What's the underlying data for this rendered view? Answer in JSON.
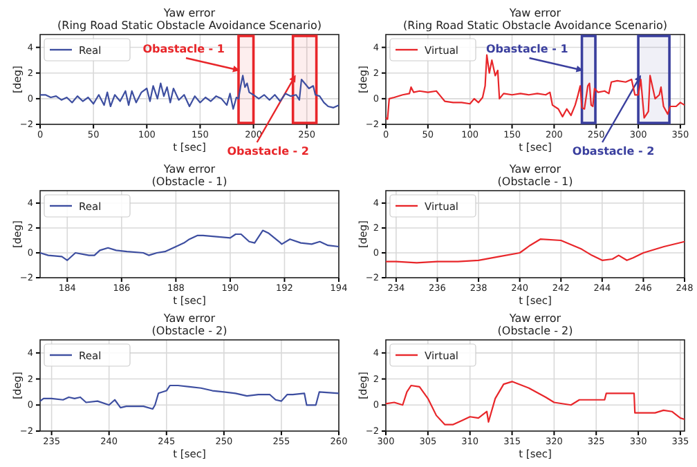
{
  "chart_data": [
    {
      "type": "line",
      "title": "Yaw error",
      "subtitle": "(Ring Road Static Obstacle Avoidance Scenario)",
      "xlabel": "t [sec]",
      "ylabel": "[deg]",
      "xlim": [
        0,
        280
      ],
      "xticks": [
        0,
        50,
        100,
        150,
        200,
        250
      ],
      "ylim": [
        -2,
        5
      ],
      "yticks": [
        -2,
        0,
        2,
        4
      ],
      "grid": true,
      "legend": "top left",
      "line_style": "solid",
      "bands": [
        {
          "axis": "x",
          "from": 186,
          "to": 200,
          "label": "Obastacle - 1",
          "color": "#e8262a"
        },
        {
          "axis": "x",
          "from": 237,
          "to": 259,
          "label": "Obastacle - 2",
          "color": "#e8262a"
        }
      ],
      "series": [
        {
          "name": "Real",
          "color": "#3d4ea0",
          "x": [
            0,
            5,
            10,
            15,
            20,
            25,
            30,
            35,
            40,
            45,
            50,
            55,
            60,
            63,
            66,
            70,
            75,
            80,
            83,
            86,
            90,
            95,
            100,
            103,
            106,
            110,
            113,
            116,
            119,
            122,
            125,
            130,
            135,
            140,
            145,
            150,
            155,
            160,
            165,
            170,
            175,
            178,
            181,
            184,
            186,
            188,
            190,
            192,
            194,
            196,
            200,
            205,
            210,
            215,
            220,
            225,
            230,
            235,
            240,
            243,
            245,
            248,
            252,
            256,
            258,
            262,
            266,
            270,
            275,
            280
          ],
          "values": [
            0.3,
            0.3,
            0.1,
            0.2,
            -0.1,
            0.1,
            -0.3,
            0.2,
            -0.2,
            0.1,
            -0.4,
            0.3,
            -0.5,
            0.5,
            -0.6,
            0.3,
            -0.2,
            0.6,
            -0.5,
            0.6,
            -0.3,
            0.5,
            0.8,
            -0.2,
            1.0,
            0.0,
            1.2,
            0.2,
            0.9,
            -0.3,
            0.8,
            -0.1,
            0.3,
            -0.6,
            0.2,
            -0.3,
            0.1,
            -0.2,
            0.2,
            0.0,
            -0.5,
            0.4,
            -0.8,
            0.1,
            0.0,
            1.0,
            1.8,
            0.9,
            1.2,
            0.5,
            0.3,
            0.0,
            0.3,
            -0.1,
            0.3,
            -0.2,
            0.4,
            0.2,
            0.3,
            -0.1,
            1.5,
            1.2,
            0.8,
            1.0,
            0.3,
            0.2,
            -0.3,
            -0.6,
            -0.7,
            -0.5
          ]
        }
      ]
    },
    {
      "type": "line",
      "title": "Yaw error",
      "subtitle": "(Ring Road Static Obstacle Avoidance Scenario)",
      "xlabel": "t [sec]",
      "ylabel": "[deg]",
      "xlim": [
        0,
        355
      ],
      "xticks": [
        0,
        50,
        100,
        150,
        200,
        250,
        300,
        350
      ],
      "ylim": [
        -2,
        5
      ],
      "yticks": [
        -2,
        0,
        2,
        4
      ],
      "grid": true,
      "legend": "top left",
      "line_style": "solid",
      "bands": [
        {
          "axis": "x",
          "from": 233,
          "to": 249,
          "label": "Obastacle - 1",
          "color": "#3a3f9e"
        },
        {
          "axis": "x",
          "from": 300,
          "to": 337,
          "label": "Obastacle - 2",
          "color": "#3a3f9e"
        }
      ],
      "series": [
        {
          "name": "Virtual",
          "color": "#e8262a",
          "x": [
            0,
            2,
            4,
            10,
            20,
            28,
            30,
            33,
            40,
            50,
            60,
            65,
            70,
            80,
            90,
            100,
            105,
            110,
            115,
            118,
            120,
            123,
            126,
            130,
            133,
            135,
            140,
            150,
            160,
            170,
            180,
            190,
            195,
            198,
            205,
            210,
            215,
            220,
            225,
            228,
            231,
            233,
            236,
            240,
            242,
            244,
            246,
            248,
            252,
            260,
            265,
            268,
            275,
            285,
            292,
            296,
            300,
            303,
            307,
            310,
            312,
            314,
            320,
            325,
            327,
            330,
            335,
            338,
            345,
            350,
            355
          ],
          "values": [
            -1.5,
            -1.6,
            0.0,
            0.1,
            0.3,
            0.4,
            0.9,
            0.5,
            0.6,
            0.5,
            0.6,
            0.2,
            -0.2,
            -0.3,
            -0.3,
            -0.4,
            0.0,
            -0.3,
            0.1,
            1.0,
            3.4,
            2.0,
            3.0,
            1.8,
            2.2,
            0.0,
            0.4,
            0.3,
            0.4,
            0.3,
            0.4,
            0.3,
            0.5,
            -0.5,
            -0.8,
            -1.4,
            -0.8,
            -1.3,
            -0.5,
            0.2,
            1.0,
            -0.7,
            -0.8,
            1.0,
            1.2,
            -0.5,
            -0.6,
            0.8,
            0.5,
            0.6,
            0.4,
            1.3,
            1.4,
            1.3,
            1.5,
            0.3,
            0.3,
            1.5,
            -1.5,
            -1.2,
            -1.0,
            1.8,
            0.0,
            0.3,
            0.9,
            -0.6,
            -1.2,
            -0.6,
            -0.6,
            -0.3,
            -0.5
          ]
        }
      ]
    },
    {
      "type": "line",
      "title": "Yaw error",
      "subtitle": "(Obstacle - 1)",
      "xlabel": "t [sec]",
      "ylabel": "[deg]",
      "xlim": [
        183,
        194
      ],
      "xticks": [
        184,
        186,
        188,
        190,
        192,
        194
      ],
      "ylim": [
        -2,
        5
      ],
      "yticks": [
        -2,
        0,
        2,
        4
      ],
      "grid": true,
      "legend": "top left",
      "line_style": "solid",
      "series": [
        {
          "name": "Real",
          "color": "#3d4ea0",
          "x": [
            183,
            183.3,
            183.8,
            184.0,
            184.3,
            184.8,
            185.0,
            185.2,
            185.5,
            185.8,
            186.2,
            186.8,
            187.0,
            187.3,
            187.6,
            188.0,
            188.3,
            188.5,
            188.8,
            189.0,
            189.5,
            190.0,
            190.2,
            190.4,
            190.7,
            190.9,
            191.2,
            191.4,
            191.8,
            191.9,
            192.2,
            192.6,
            193.0,
            193.3,
            193.6,
            194
          ],
          "values": [
            0.0,
            -0.2,
            -0.3,
            -0.6,
            0.0,
            -0.2,
            -0.2,
            0.2,
            0.4,
            0.2,
            0.1,
            0.0,
            -0.2,
            0.0,
            0.1,
            0.5,
            0.8,
            1.1,
            1.4,
            1.4,
            1.3,
            1.2,
            1.5,
            1.5,
            0.9,
            0.8,
            1.8,
            1.6,
            0.9,
            0.7,
            1.1,
            0.8,
            0.7,
            0.9,
            0.6,
            0.5
          ]
        }
      ]
    },
    {
      "type": "line",
      "title": "Yaw error",
      "subtitle": "(Obstacle - 1)",
      "xlabel": "t [sec]",
      "ylabel": "[deg]",
      "xlim": [
        233.5,
        248
      ],
      "xticks": [
        234,
        236,
        238,
        240,
        242,
        244,
        246,
        248
      ],
      "ylim": [
        -2,
        5
      ],
      "yticks": [
        -2,
        0,
        2,
        4
      ],
      "grid": true,
      "legend": "top left",
      "line_style": "solid",
      "series": [
        {
          "name": "Virtual",
          "color": "#e8262a",
          "x": [
            233.5,
            234,
            235,
            236,
            237,
            238,
            239,
            240,
            240.5,
            241,
            242,
            243,
            243.5,
            244,
            244.5,
            244.8,
            245.2,
            245.5,
            246,
            247,
            248
          ],
          "values": [
            -0.7,
            -0.7,
            -0.8,
            -0.7,
            -0.7,
            -0.6,
            -0.3,
            0.0,
            0.6,
            1.1,
            1.0,
            0.3,
            -0.2,
            -0.6,
            -0.5,
            -0.2,
            -0.6,
            -0.4,
            0.0,
            0.5,
            0.9
          ]
        }
      ]
    },
    {
      "type": "line",
      "title": "Yaw error",
      "subtitle": "(Obstacle - 2)",
      "xlabel": "t [sec]",
      "ylabel": "[deg]",
      "xlim": [
        234,
        260
      ],
      "xticks": [
        235,
        240,
        245,
        250,
        255,
        260
      ],
      "ylim": [
        -2,
        5
      ],
      "yticks": [
        -2,
        0,
        2,
        4
      ],
      "grid": true,
      "legend": "top left",
      "line_style": "solid",
      "series": [
        {
          "name": "Real",
          "color": "#3d4ea0",
          "x": [
            234,
            234.3,
            235,
            236,
            236.5,
            237,
            237.5,
            238,
            239,
            240,
            240.5,
            241,
            241.5,
            243,
            243.8,
            244,
            244.3,
            245,
            245.3,
            246,
            247,
            248,
            249,
            250,
            251,
            252,
            253,
            254,
            254.5,
            255,
            255.5,
            256,
            257,
            257.2,
            258,
            258.3,
            260
          ],
          "values": [
            0.3,
            0.5,
            0.5,
            0.4,
            0.6,
            0.5,
            0.6,
            0.2,
            0.3,
            0.0,
            0.4,
            -0.2,
            -0.1,
            -0.1,
            -0.3,
            0.0,
            0.9,
            1.1,
            1.5,
            1.5,
            1.4,
            1.3,
            1.1,
            1.0,
            0.9,
            0.7,
            0.8,
            0.8,
            0.4,
            0.3,
            0.8,
            0.8,
            0.9,
            0.0,
            0.0,
            1.0,
            0.9
          ]
        }
      ]
    },
    {
      "type": "line",
      "title": "Yaw error",
      "subtitle": "(Obstacle - 2)",
      "xlabel": "t [sec]",
      "ylabel": "[deg]",
      "xlim": [
        300,
        335.5
      ],
      "xticks": [
        300,
        305,
        310,
        315,
        320,
        325,
        330,
        335
      ],
      "ylim": [
        -2,
        5
      ],
      "yticks": [
        -2,
        0,
        2,
        4
      ],
      "grid": true,
      "legend": "top left",
      "line_style": "solid",
      "series": [
        {
          "name": "Virtual",
          "color": "#e8262a",
          "x": [
            300,
            301,
            302,
            302.5,
            303,
            304,
            305,
            306,
            307,
            308,
            309,
            310,
            311,
            312,
            312.2,
            313,
            314,
            315,
            317,
            319,
            320,
            322,
            323,
            324,
            326,
            326.2,
            329.5,
            329.6,
            332,
            333,
            334,
            335,
            335.5
          ],
          "values": [
            0.1,
            0.2,
            0.0,
            1.0,
            1.5,
            1.4,
            0.5,
            -0.8,
            -1.5,
            -1.5,
            -1.2,
            -0.9,
            -1.0,
            -0.5,
            -1.3,
            0.5,
            1.6,
            1.8,
            1.3,
            0.6,
            0.2,
            0.0,
            0.4,
            0.4,
            0.4,
            0.9,
            0.9,
            -0.6,
            -0.6,
            -0.4,
            -0.5,
            -1.0,
            -1.1
          ]
        }
      ]
    }
  ]
}
